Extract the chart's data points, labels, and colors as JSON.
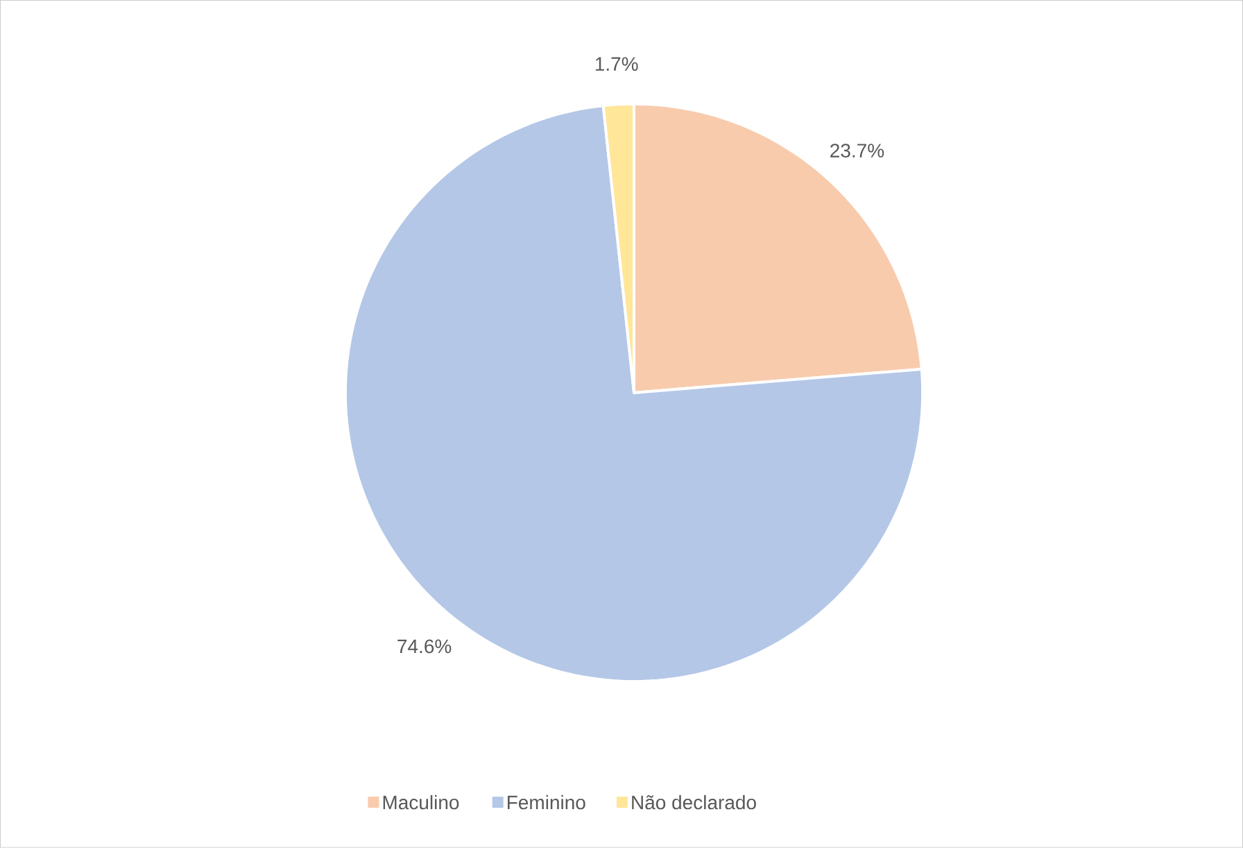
{
  "chart_data": {
    "type": "pie",
    "categories": [
      "Maculino",
      "Feminino",
      "Não declarado"
    ],
    "values": [
      23.7,
      74.6,
      1.7
    ],
    "value_labels": [
      "23.7%",
      "74.6%",
      "1.7%"
    ],
    "colors": [
      "#f8cbad",
      "#b4c7e7",
      "#ffe699"
    ],
    "legend": "bottom"
  }
}
